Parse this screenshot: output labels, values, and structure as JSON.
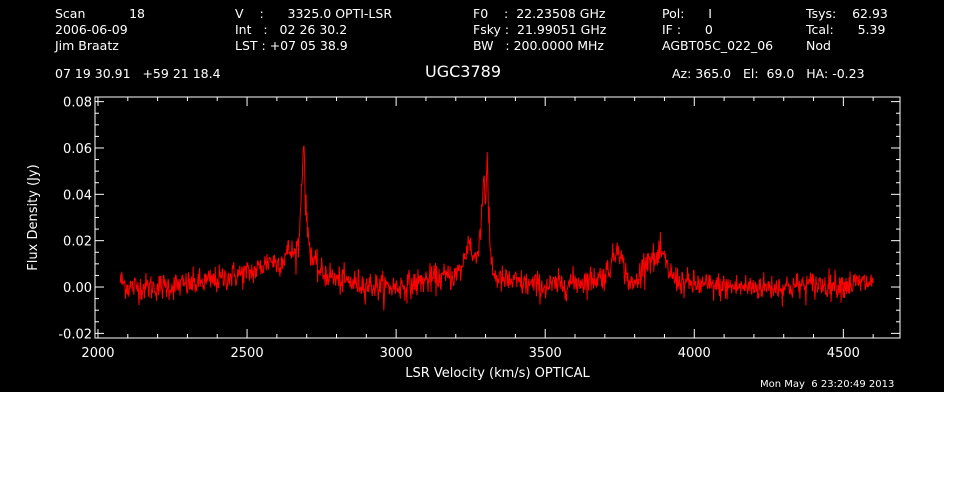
{
  "header": {
    "col1": [
      "Scan           18",
      "2006-06-09",
      "Jim Braatz"
    ],
    "col2": [
      "V    :      3325.0 OPTI-LSR",
      "Int   :   02 26 30.2",
      "LST : +07 05 38.9"
    ],
    "col3": [
      "F0    :  22.23508 GHz",
      "Fsky :  21.99051 GHz",
      "BW   : 200.0000 MHz"
    ],
    "col4": [
      "Pol:      I",
      "IF :      0",
      "AGBT05C_022_06"
    ],
    "col5": [
      "Tsys:    62.93",
      "Tcal:      5.39",
      "Nod"
    ],
    "coords": "07 19 30.91   +59 21 18.4",
    "source": "UGC3789",
    "pointing": "Az: 365.0   El:  69.0   HA: -0.23",
    "timestamp": "Mon May  6 23:20:49 2013"
  },
  "colors": {
    "background": "#000000",
    "axes": "#ffffff",
    "trace": "#ff0000"
  },
  "chart_data": {
    "type": "line",
    "xlabel": "LSR Velocity (km/s) OPTICAL",
    "ylabel": "Flux Density (Jy)",
    "xlim": [
      1990,
      4690
    ],
    "ylim": [
      -0.022,
      0.082
    ],
    "xticks": [
      2000,
      2500,
      3000,
      3500,
      4000,
      4500
    ],
    "yticks": [
      -0.02,
      0.0,
      0.02,
      0.04,
      0.06,
      0.08
    ],
    "ytick_labels": [
      "-0.02",
      "0.00",
      "0.02",
      "0.04",
      "0.06",
      "0.08"
    ],
    "noise_rms": 0.003,
    "series": [
      {
        "x": [
          2075,
          2100,
          2200,
          2300,
          2400,
          2450,
          2500,
          2530,
          2560,
          2580,
          2600,
          2620,
          2640,
          2660,
          2675,
          2685,
          2690,
          2695,
          2700,
          2710,
          2720,
          2730,
          2750,
          2780,
          2800,
          2850,
          2900,
          2950,
          3000,
          3050,
          3100,
          3150,
          3200,
          3220,
          3235,
          3245,
          3255,
          3270,
          3285,
          3295,
          3300,
          3305,
          3310,
          3318,
          3330,
          3350,
          3400,
          3450,
          3500,
          3550,
          3600,
          3650,
          3700,
          3720,
          3735,
          3745,
          3755,
          3770,
          3790,
          3810,
          3830,
          3850,
          3870,
          3890,
          3910,
          3930,
          3960,
          4000,
          4100,
          4200,
          4300,
          4400,
          4500,
          4600
        ],
        "y": [
          0.003,
          0.0,
          0.0,
          0.001,
          0.003,
          0.005,
          0.006,
          0.007,
          0.01,
          0.012,
          0.01,
          0.012,
          0.016,
          0.014,
          0.02,
          0.05,
          0.066,
          0.04,
          0.028,
          0.018,
          0.012,
          0.009,
          0.006,
          0.005,
          0.003,
          0.002,
          0.001,
          0.0,
          0.0,
          0.001,
          0.003,
          0.004,
          0.005,
          0.008,
          0.015,
          0.022,
          0.013,
          0.012,
          0.028,
          0.05,
          0.035,
          0.058,
          0.03,
          0.012,
          0.005,
          0.003,
          0.002,
          0.001,
          0.0,
          0.001,
          0.002,
          0.003,
          0.005,
          0.01,
          0.014,
          0.02,
          0.012,
          0.006,
          0.0,
          0.003,
          0.01,
          0.013,
          0.011,
          0.015,
          0.008,
          0.004,
          0.002,
          0.001,
          0.0,
          0.0,
          0.0,
          0.001,
          0.001,
          0.002
        ]
      }
    ]
  }
}
